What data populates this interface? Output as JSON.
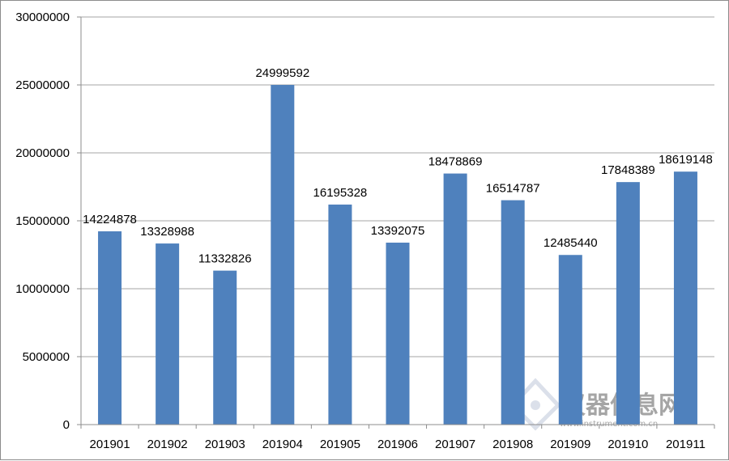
{
  "chart_data": {
    "type": "bar",
    "categories": [
      "201901",
      "201902",
      "201903",
      "201904",
      "201905",
      "201906",
      "201907",
      "201908",
      "201909",
      "201910",
      "201911"
    ],
    "values": [
      14224878,
      13328988,
      11332826,
      24999592,
      16195328,
      13392075,
      18478869,
      16514787,
      12485440,
      17848389,
      18619148
    ],
    "data_labels": [
      "14224878",
      "13328988",
      "11332826",
      "24999592",
      "16195328",
      "13392075",
      "18478869",
      "16514787",
      "12485440",
      "17848389",
      "18619148"
    ],
    "ylim": [
      0,
      30000000
    ],
    "yticks": [
      0,
      5000000,
      10000000,
      15000000,
      20000000,
      25000000,
      30000000
    ],
    "ytick_labels": [
      "0",
      "5000000",
      "10000000",
      "15000000",
      "20000000",
      "25000000",
      "30000000"
    ],
    "grid": true,
    "bar_color": "#4f81bd",
    "grid_color": "#a6a6a6"
  },
  "watermark": {
    "text": "仪器信息网",
    "url": "www.instrument.com.cn"
  }
}
